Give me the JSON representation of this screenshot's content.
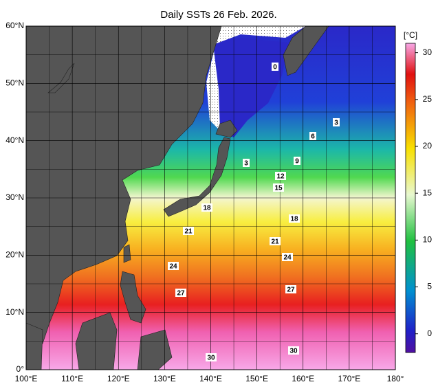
{
  "title": "Daily SSTs 26 Feb. 2026.",
  "map": {
    "xlim": [
      100,
      180
    ],
    "ylim": [
      0,
      60
    ],
    "xticks": [
      {
        "value": 100,
        "label": "100°E"
      },
      {
        "value": 110,
        "label": "110°E"
      },
      {
        "value": 120,
        "label": "120°E"
      },
      {
        "value": 130,
        "label": "130°E"
      },
      {
        "value": 140,
        "label": "140°E"
      },
      {
        "value": 150,
        "label": "150°E"
      },
      {
        "value": 160,
        "label": "160°E"
      },
      {
        "value": 170,
        "label": "170°E"
      },
      {
        "value": 180,
        "label": "180°"
      }
    ],
    "yticks": [
      {
        "value": 0,
        "label": "0°"
      },
      {
        "value": 10,
        "label": "10°N"
      },
      {
        "value": 20,
        "label": "20°N"
      },
      {
        "value": 30,
        "label": "30°N"
      },
      {
        "value": 40,
        "label": "40°N"
      },
      {
        "value": 50,
        "label": "50°N"
      },
      {
        "value": 60,
        "label": "60°N"
      }
    ]
  },
  "colorbar": {
    "unit": "[°C]",
    "range": [
      -2,
      31
    ],
    "ticks": [
      0,
      5,
      10,
      15,
      20,
      25,
      30
    ]
  },
  "contour_labels": [
    "0",
    "3",
    "6",
    "9",
    "3",
    "12",
    "15",
    "18",
    "18",
    "21",
    "21",
    "24",
    "24",
    "27",
    "27",
    "30",
    "30"
  ]
}
